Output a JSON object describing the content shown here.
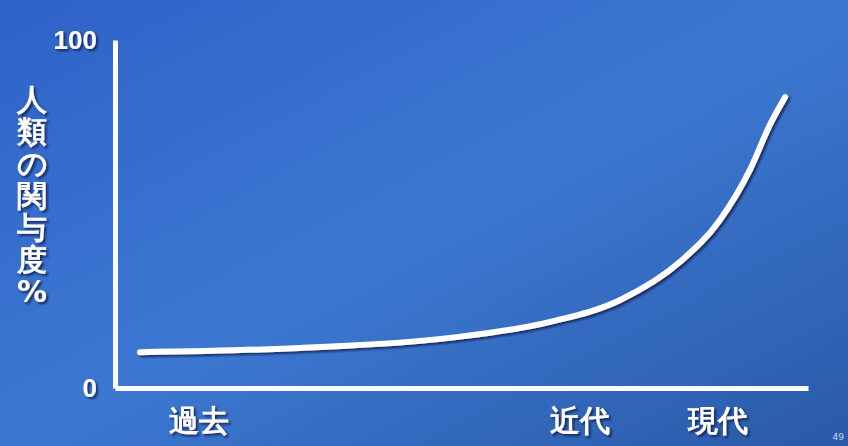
{
  "chart_data": {
    "type": "line",
    "ylabel": "人類の関与度%",
    "x": [
      3.6,
      26.7,
      48.3,
      62.8,
      72.9,
      81.5,
      87.3,
      91.6,
      94.5,
      96.7
    ],
    "values": [
      10.3,
      11.5,
      14.4,
      19.0,
      25.3,
      36.2,
      48.3,
      62.6,
      75.6,
      83.6
    ],
    "color": "#ffffff",
    "xlim": [
      0,
      100
    ],
    "xticks": [
      {
        "value": 12,
        "label": "過去"
      },
      {
        "value": 67,
        "label": "近代"
      },
      {
        "value": 87,
        "label": "現代"
      }
    ],
    "ylim": [
      0,
      100
    ],
    "yticks": [
      0,
      100
    ],
    "grid": false,
    "annotations": [
      "49"
    ]
  }
}
